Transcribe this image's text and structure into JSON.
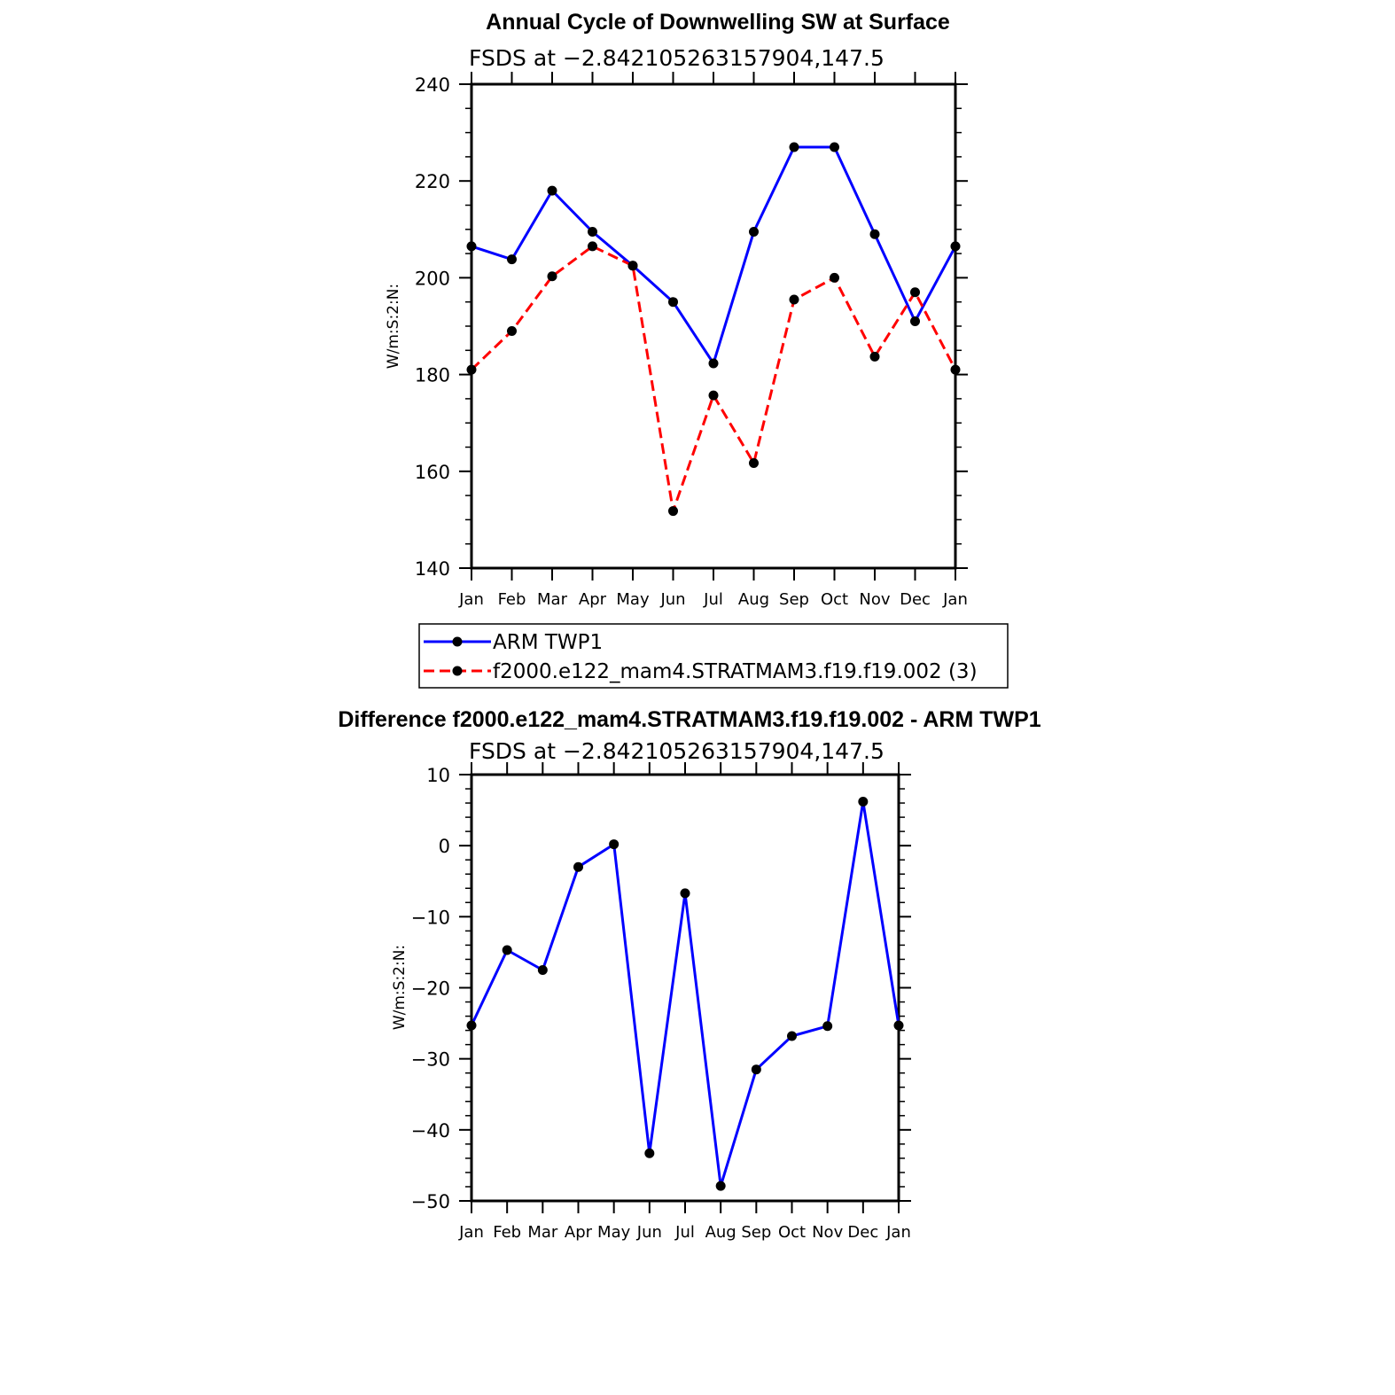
{
  "chart_data": [
    {
      "type": "line",
      "title": "Annual Cycle of Downwelling SW at Surface",
      "subtitle": "FSDS at −2.842105263157904,147.5",
      "ylabel": "W/m:S:2:N:",
      "xlabel": "",
      "categories": [
        "Jan",
        "Feb",
        "Mar",
        "Apr",
        "May",
        "Jun",
        "Jul",
        "Aug",
        "Sep",
        "Oct",
        "Nov",
        "Dec",
        "Jan"
      ],
      "ylim": [
        140,
        240
      ],
      "yticks": [
        "140",
        "160",
        "180",
        "200",
        "220",
        "240"
      ],
      "legend": "bottom",
      "series": [
        {
          "name": "ARM TWP1",
          "color": "#0000ff",
          "dash": "solid",
          "values": [
            206.5,
            203.8,
            218.0,
            209.5,
            202.5,
            195.0,
            182.3,
            209.5,
            227.0,
            227.0,
            209.0,
            191.0,
            206.5
          ]
        },
        {
          "name": "f2000.e122_mam4.STRATMAM3.f19.f19.002 (3)",
          "color": "#ff0000",
          "dash": "dashed",
          "values": [
            181.0,
            189.0,
            200.3,
            206.5,
            202.5,
            151.8,
            175.7,
            161.7,
            195.5,
            200.0,
            183.7,
            197.0,
            181.0
          ]
        }
      ]
    },
    {
      "type": "line",
      "title": "Difference f2000.e122_mam4.STRATMAM3.f19.f19.002 - ARM TWP1",
      "subtitle": "FSDS at −2.842105263157904,147.5",
      "ylabel": "W/m:S:2:N:",
      "xlabel": "",
      "categories": [
        "Jan",
        "Feb",
        "Mar",
        "Apr",
        "May",
        "Jun",
        "Jul",
        "Aug",
        "Sep",
        "Oct",
        "Nov",
        "Dec",
        "Jan"
      ],
      "ylim": [
        -50,
        10
      ],
      "yticks": [
        "−50",
        "−40",
        "−30",
        "−20",
        "−10",
        "0",
        "10"
      ],
      "series": [
        {
          "color": "#0000ff",
          "dash": "solid",
          "values": [
            -25.3,
            -14.7,
            -17.5,
            -3.0,
            0.2,
            -43.3,
            -6.7,
            -47.9,
            -31.5,
            -26.8,
            -25.4,
            6.2,
            -25.3
          ]
        }
      ]
    }
  ]
}
